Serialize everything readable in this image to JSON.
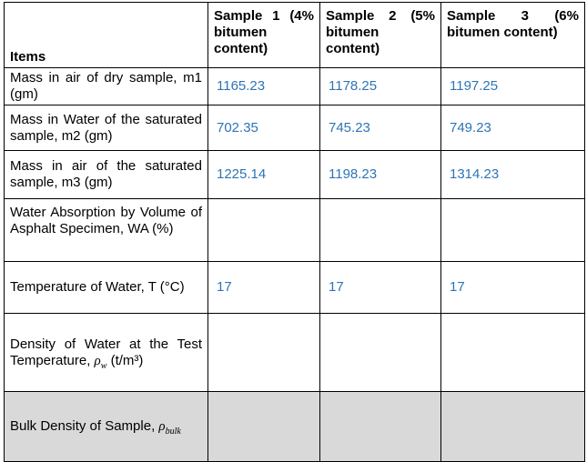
{
  "table": {
    "header": {
      "items": "Items",
      "samples": [
        "Sample 1 (4% bitumen content)",
        "Sample 2 (5% bitumen content)",
        "Sample 3 (6% bitumen content)"
      ]
    },
    "rows": [
      {
        "label": "Mass in air of dry sample, m1 (gm)",
        "values": [
          1165.23,
          1178.25,
          1197.25
        ]
      },
      {
        "label": "Mass in Water of the saturated sample, m2 (gm)",
        "values": [
          702.35,
          745.23,
          749.23
        ]
      },
      {
        "label": "Mass in air of the saturated sample, m3 (gm)",
        "values": [
          1225.14,
          1198.23,
          1314.23
        ]
      },
      {
        "label": "Water Absorption by Volume of Asphalt Specimen, WA (%)"
      },
      {
        "label": "Temperature of Water, T (°C)",
        "values": [
          17,
          17,
          17
        ]
      },
      {
        "label": "Density of Water at the Test Temperature,",
        "symbol": "ρ",
        "subscript": "w",
        "unit": "(t/m³)"
      },
      {
        "label": "Bulk Density of Sample,",
        "symbol": "ρ",
        "subscript": "bulk"
      }
    ]
  }
}
